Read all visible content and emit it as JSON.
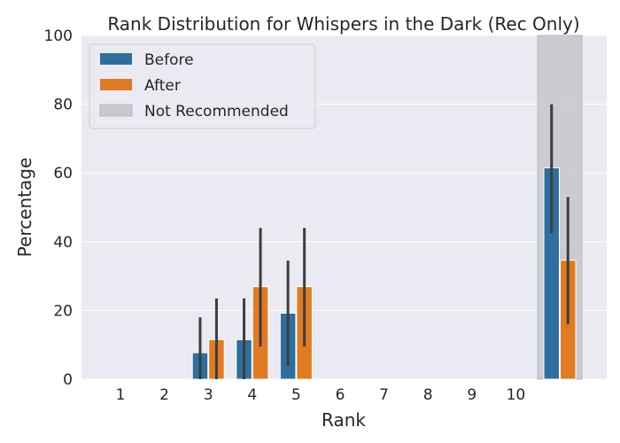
{
  "chart_data": {
    "type": "bar",
    "title": "Rank Distribution for Whispers in the Dark (Rec Only)",
    "xlabel": "Rank",
    "ylabel": "Percentage",
    "ylim": [
      0,
      100
    ],
    "yticks": [
      "0",
      "20",
      "40",
      "60",
      "80",
      "100"
    ],
    "categories": [
      "1",
      "2",
      "3",
      "4",
      "5",
      "6",
      "7",
      "8",
      "9",
      "10",
      ""
    ],
    "not_recommended_category_index": 10,
    "series": [
      {
        "name": "Before",
        "color": "#2f6f9f",
        "values": [
          0,
          0,
          7.7,
          11.5,
          19.2,
          0,
          0,
          0,
          0,
          0,
          61.5
        ],
        "ci_low": [
          0,
          0,
          0,
          0,
          3.8,
          0,
          0,
          0,
          0,
          0,
          42.5
        ],
        "ci_high": [
          0,
          0,
          18,
          23.5,
          34.5,
          0,
          0,
          0,
          0,
          0,
          80
        ]
      },
      {
        "name": "After",
        "color": "#e07b22",
        "values": [
          0,
          0,
          11.5,
          26.9,
          26.9,
          0,
          0,
          0,
          0,
          0,
          34.6
        ],
        "ci_low": [
          0,
          0,
          0,
          9.5,
          9.5,
          0,
          0,
          0,
          0,
          0,
          16
        ],
        "ci_high": [
          0,
          0,
          23.5,
          44,
          44,
          0,
          0,
          0,
          0,
          0,
          53
        ]
      }
    ],
    "shade_label": "Not Recommended",
    "shade_color": "#c8c8ce",
    "background_color": "#eaeaf2",
    "grid": true,
    "legend_position": "top-left"
  }
}
